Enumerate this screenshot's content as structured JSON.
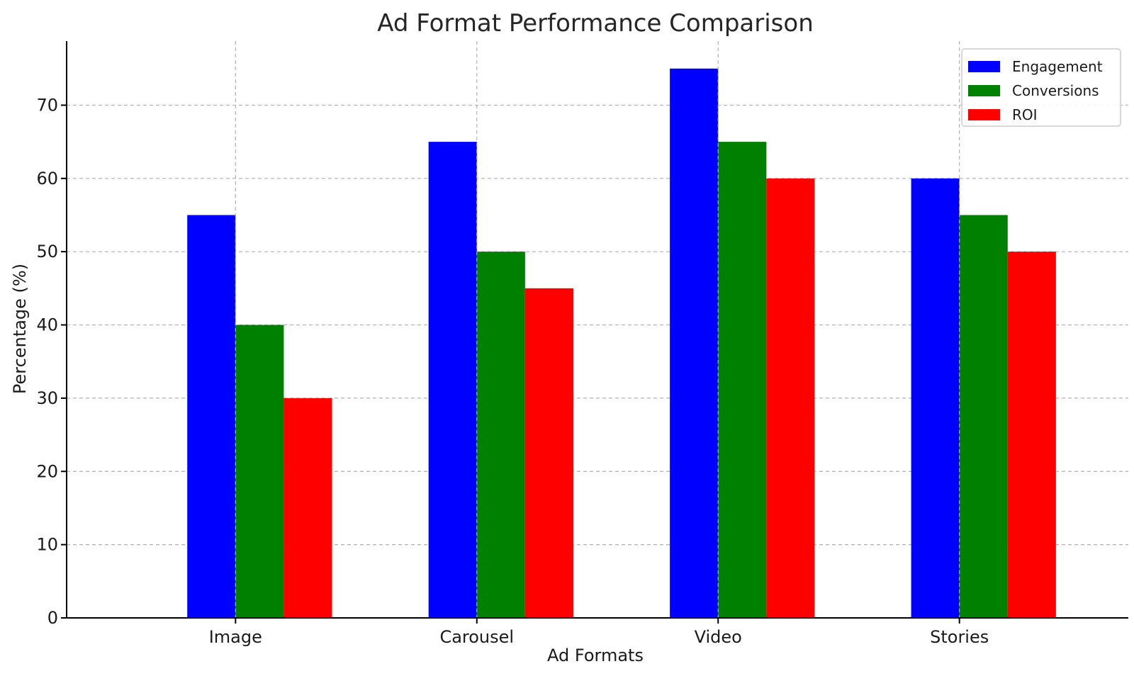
{
  "chart_data": {
    "type": "bar",
    "title": "Ad Format Performance Comparison",
    "xlabel": "Ad Formats",
    "ylabel": "Percentage (%)",
    "categories": [
      "Image",
      "Carousel",
      "Video",
      "Stories"
    ],
    "series": [
      {
        "name": "Engagement",
        "values": [
          55,
          65,
          75,
          60
        ],
        "color": "#0000ff"
      },
      {
        "name": "Conversions",
        "values": [
          40,
          50,
          65,
          55
        ],
        "color": "#008000"
      },
      {
        "name": "ROI",
        "values": [
          30,
          45,
          60,
          50
        ],
        "color": "#ff0000"
      }
    ],
    "ylim": [
      0,
      78.75
    ],
    "yticks": [
      0,
      10,
      20,
      30,
      40,
      50,
      60,
      70
    ],
    "grid": true,
    "legend_position": "top-right"
  }
}
